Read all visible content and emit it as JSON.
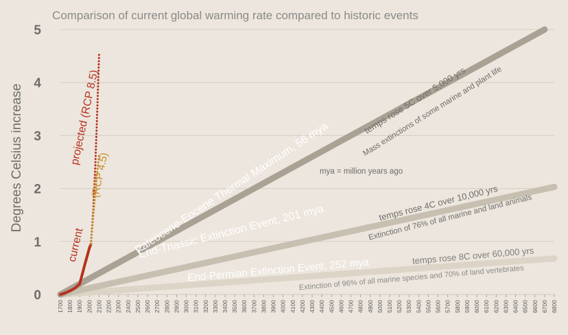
{
  "chart_data": {
    "type": "line",
    "title": "Comparison of current global warming rate compared to historic events",
    "xlabel": "",
    "ylabel": "Degrees Celsius increase",
    "xlim": [
      1700,
      6800
    ],
    "ylim": [
      0,
      5
    ],
    "x_tick_step": 100,
    "y_ticks": [
      0,
      1,
      2,
      3,
      4,
      5
    ],
    "grid": true,
    "note": "mya = million years ago",
    "series": [
      {
        "name": "current",
        "label": "current",
        "color": "#b8311e",
        "style": "solid",
        "x": [
          1700,
          1750,
          1800,
          1850,
          1900,
          1950,
          2000,
          2015
        ],
        "y": [
          0,
          0.03,
          0.07,
          0.12,
          0.2,
          0.55,
          0.88,
          0.95
        ]
      },
      {
        "name": "projected (RCP 8.5)",
        "label": "projected (RCP 8.5)",
        "color": "#b8311e",
        "style": "dotted",
        "x": [
          2015,
          2040,
          2060,
          2080,
          2100
        ],
        "y": [
          0.95,
          1.6,
          2.4,
          3.4,
          4.55
        ]
      },
      {
        "name": "(RCP 4.5)",
        "label": "(RCP 4.5)",
        "color": "#c98a2b",
        "style": "dotted",
        "x": [
          2015,
          2050,
          2080,
          2100
        ],
        "y": [
          0.95,
          1.7,
          2.3,
          2.65
        ]
      },
      {
        "name": "Paleocene-Eocene Thermal Maximum, 56 mya",
        "label": "Paleocene-Eocene Thermal Maximum, 56 mya",
        "color": "#a9a294",
        "style": "solid",
        "x": [
          1700,
          6700
        ],
        "y": [
          0,
          5
        ],
        "annotation": "temps rose 5C over 5,000 yrs",
        "detail": "Mass extinctions of some marine and plant life"
      },
      {
        "name": "End-Triassic Extinction Event, 201 mya",
        "label": "End-Triassic Extinction Event, 201 mya",
        "color": "#c7bfb0",
        "style": "solid",
        "x": [
          1700,
          6800
        ],
        "y": [
          0,
          2.03
        ],
        "annotation": "temps rose 4C over 10,000 yrs",
        "detail": "Extinction of 76% of all marine and land animals"
      },
      {
        "name": "End-Permian Extinction Event, 252 mya",
        "label": "End-Permian Extinction Event, 252 mya",
        "color": "#dcd4c6",
        "style": "solid",
        "x": [
          1700,
          6800
        ],
        "y": [
          0,
          0.68
        ],
        "annotation": "temps rose 8C over 60,000 yrs",
        "detail": "Extinction of 96% of all marine species and 70% of land vertebrates"
      }
    ]
  }
}
